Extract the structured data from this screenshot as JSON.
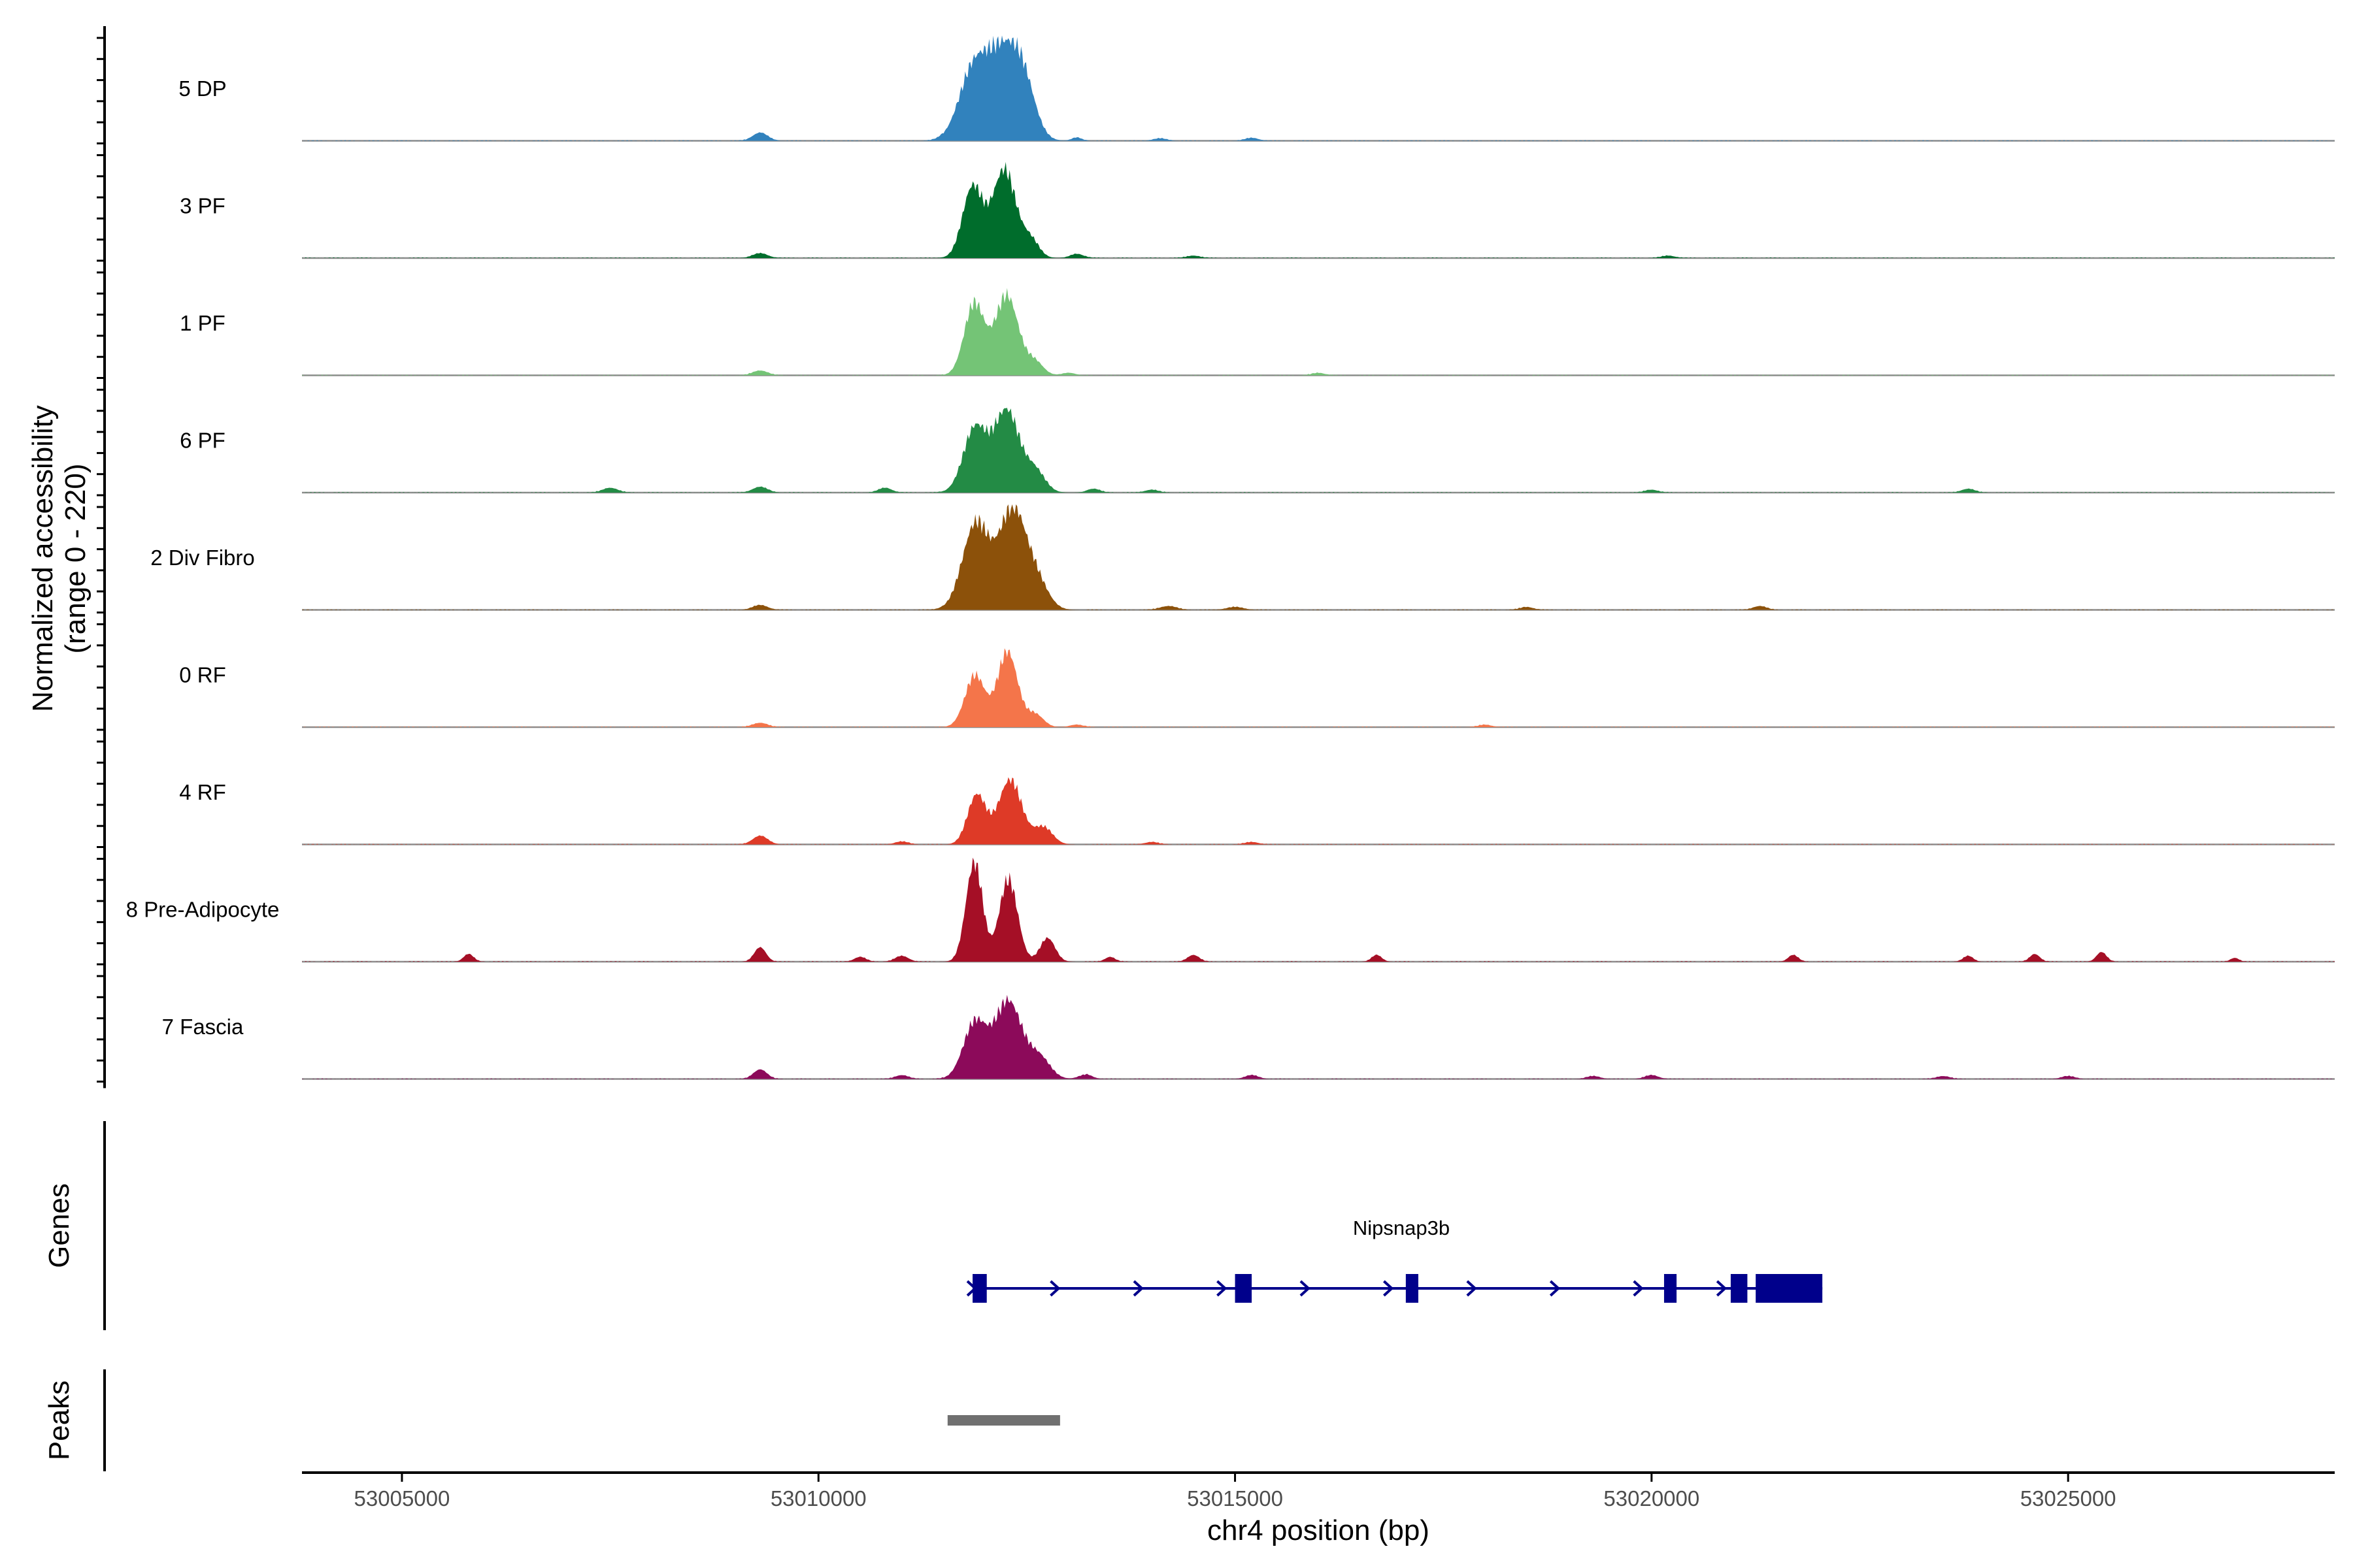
{
  "chart_data": {
    "type": "area",
    "region": {
      "chrom": "chr4",
      "start": 53003800,
      "end": 53028200
    },
    "ylabel": "Normalized accessibility",
    "ylabel_range": "(range 0 - 220)",
    "ylim": [
      0,
      220
    ],
    "xlabel": "chr4 position (bp)",
    "x_ticks": [
      53005000,
      53010000,
      53015000,
      53020000,
      53025000
    ],
    "x_tick_labels": [
      "53005000",
      "53010000",
      "53015000",
      "53020000",
      "53025000"
    ],
    "tracks": [
      {
        "label": "5 DP",
        "color": "#3182bd",
        "peaks": [
          [
            53011850,
            150,
            170
          ],
          [
            53012220,
            200,
            200
          ],
          [
            53012470,
            90,
            140
          ]
        ],
        "small": [
          [
            53009300,
            17,
            90
          ],
          [
            53013100,
            8,
            60
          ],
          [
            53014100,
            5,
            80
          ],
          [
            53015200,
            6,
            80
          ]
        ]
      },
      {
        "label": "3 PF",
        "color": "#006d2c",
        "peaks": [
          [
            53011850,
            165,
            120
          ],
          [
            53012230,
            205,
            140
          ],
          [
            53012550,
            40,
            100
          ]
        ],
        "small": [
          [
            53009300,
            10,
            90
          ],
          [
            53013100,
            10,
            80
          ],
          [
            53014500,
            5,
            80
          ],
          [
            53020200,
            5,
            80
          ]
        ]
      },
      {
        "label": "1 PF",
        "color": "#74c476",
        "peaks": [
          [
            53011870,
            165,
            120
          ],
          [
            53012260,
            185,
            140
          ],
          [
            53012600,
            30,
            100
          ]
        ],
        "small": [
          [
            53009300,
            10,
            90
          ],
          [
            53013000,
            6,
            80
          ],
          [
            53016000,
            5,
            80
          ]
        ]
      },
      {
        "label": "6 PF",
        "color": "#238b45",
        "peaks": [
          [
            53011880,
            150,
            140
          ],
          [
            53012260,
            190,
            150
          ],
          [
            53012600,
            50,
            120
          ]
        ],
        "small": [
          [
            53007500,
            10,
            90
          ],
          [
            53009300,
            12,
            90
          ],
          [
            53010800,
            10,
            80
          ],
          [
            53013300,
            8,
            80
          ],
          [
            53014000,
            6,
            80
          ],
          [
            53020000,
            6,
            80
          ],
          [
            53023800,
            8,
            80
          ]
        ]
      },
      {
        "label": "2 Div Fibro",
        "color": "#8c510a",
        "peaks": [
          [
            53011890,
            200,
            160
          ],
          [
            53012330,
            230,
            160
          ],
          [
            53012620,
            60,
            140
          ]
        ],
        "small": [
          [
            53009300,
            10,
            90
          ],
          [
            53014200,
            8,
            100
          ],
          [
            53015000,
            6,
            100
          ],
          [
            53018500,
            6,
            80
          ],
          [
            53021300,
            8,
            80
          ]
        ]
      },
      {
        "label": "0 RF",
        "color": "#f4754a",
        "peaks": [
          [
            53011880,
            120,
            120
          ],
          [
            53012270,
            175,
            120
          ],
          [
            53012600,
            30,
            100
          ]
        ],
        "small": [
          [
            53009300,
            9,
            90
          ],
          [
            53013100,
            6,
            80
          ],
          [
            53018000,
            5,
            80
          ]
        ]
      },
      {
        "label": "4 RF",
        "color": "#de3a27",
        "peaks": [
          [
            53011900,
            115,
            110
          ],
          [
            53012300,
            150,
            140
          ],
          [
            53012700,
            40,
            110
          ]
        ],
        "small": [
          [
            53009300,
            18,
            90
          ],
          [
            53011000,
            6,
            80
          ],
          [
            53014000,
            5,
            80
          ],
          [
            53015200,
            5,
            80
          ]
        ]
      },
      {
        "label": "8 Pre-Adipocyte",
        "color": "#a50f26",
        "peaks": [
          [
            53011870,
            230,
            100
          ],
          [
            53012280,
            190,
            110
          ],
          [
            53012750,
            55,
            90
          ]
        ],
        "small": [
          [
            53005800,
            16,
            60
          ],
          [
            53009300,
            30,
            70
          ],
          [
            53010500,
            10,
            70
          ],
          [
            53011000,
            12,
            80
          ],
          [
            53013500,
            10,
            60
          ],
          [
            53014500,
            14,
            70
          ],
          [
            53016700,
            14,
            60
          ],
          [
            53021700,
            14,
            60
          ],
          [
            53023800,
            12,
            60
          ],
          [
            53024600,
            16,
            60
          ],
          [
            53025400,
            20,
            60
          ],
          [
            53027000,
            8,
            50
          ]
        ]
      },
      {
        "label": "7 Fascia",
        "color": "#8c0a5a",
        "peaks": [
          [
            53011880,
            130,
            140
          ],
          [
            53012280,
            180,
            160
          ],
          [
            53012650,
            50,
            130
          ]
        ],
        "small": [
          [
            53009300,
            20,
            80
          ],
          [
            53011000,
            8,
            80
          ],
          [
            53013200,
            10,
            80
          ],
          [
            53015200,
            8,
            80
          ],
          [
            53019300,
            6,
            80
          ],
          [
            53020000,
            8,
            80
          ],
          [
            53023500,
            6,
            80
          ],
          [
            53025000,
            6,
            80
          ]
        ]
      }
    ],
    "genes_label": "Genes",
    "gene": {
      "name": "Nipsnap3b",
      "strand": "+",
      "start": 53011850,
      "end": 53022050,
      "color": "#00008b",
      "exons": [
        [
          53011850,
          53012020
        ],
        [
          53015000,
          53015200
        ],
        [
          53017050,
          53017200
        ],
        [
          53020150,
          53020300
        ],
        [
          53020950,
          53021150
        ],
        [
          53021250,
          53022050
        ]
      ],
      "arrows": [
        53011850,
        53012850,
        53013850,
        53014850,
        53015850,
        53016850,
        53017850,
        53018850,
        53019850,
        53020850
      ]
    },
    "peaks_label": "Peaks",
    "peak_regions": [
      [
        53011550,
        53012900
      ]
    ],
    "peak_color": "#707070"
  }
}
